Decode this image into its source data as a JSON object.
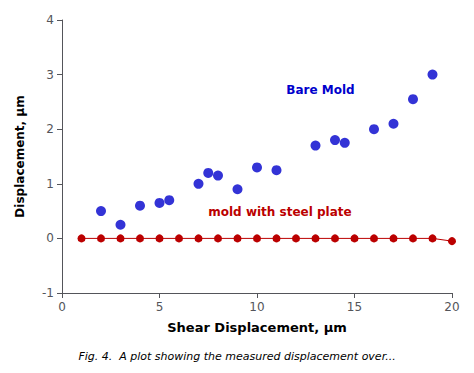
{
  "chart_data": {
    "type": "scatter",
    "xlabel": "Shear Displacement, μm",
    "ylabel": "Displacement, μm",
    "caption": "Fig. 4.  A plot showing the measured displacement over...",
    "xlim": [
      0,
      20
    ],
    "ylim": [
      -1,
      4
    ],
    "xticks": [
      0,
      5,
      10,
      15,
      20
    ],
    "yticks": [
      -1,
      0,
      1,
      2,
      3,
      4
    ],
    "grid": false,
    "series": [
      {
        "type": "line",
        "marker": "circle",
        "line_style": "solid",
        "color": "#BB0000",
        "x": [
          1,
          2,
          3,
          4,
          5,
          6,
          7,
          8,
          9,
          10,
          11,
          12,
          13,
          14,
          15,
          16,
          17,
          18,
          19,
          20
        ],
        "values": [
          0,
          0,
          0,
          0,
          0,
          0,
          0,
          0,
          0,
          0,
          0,
          0,
          0,
          0,
          0,
          0,
          0,
          0,
          0,
          -0.05
        ]
      },
      {
        "type": "scatter",
        "marker": "circle",
        "color": "#0000CC",
        "x": [
          2,
          3,
          4,
          5,
          5.5,
          7,
          7.5,
          8,
          9,
          10,
          11,
          13,
          14,
          14.5,
          16,
          17,
          18,
          19
        ],
        "values": [
          0.5,
          0.25,
          0.6,
          0.65,
          0.7,
          1.0,
          1.2,
          1.15,
          0.9,
          1.3,
          1.25,
          1.7,
          1.8,
          1.75,
          2.0,
          2.1,
          2.55,
          3.0
        ]
      }
    ],
    "annotations": [
      {
        "text": "Bare Mold",
        "x": 11.5,
        "y": 2.6,
        "color": "#0000CC"
      },
      {
        "text": "mold with steel plate",
        "x": 7.5,
        "y": 0.38,
        "color": "#BB0000"
      }
    ]
  }
}
